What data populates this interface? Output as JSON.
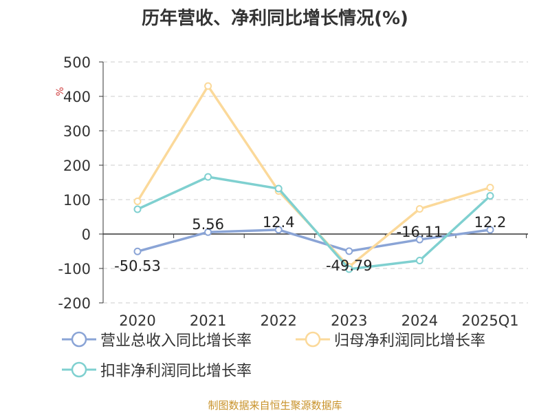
{
  "chart_data": {
    "type": "line",
    "title": "历年营收、净利同比增长情况(%)",
    "ylabel": "%",
    "categories": [
      "2020",
      "2021",
      "2022",
      "2023",
      "2024",
      "2025Q1"
    ],
    "ylim": [
      -200,
      500
    ],
    "yticks": [
      500,
      400,
      300,
      200,
      100,
      0,
      -100,
      -200
    ],
    "grid": true,
    "legend_position": "bottom",
    "series": [
      {
        "name": "营业总收入同比增长率",
        "color": "#8aa4d6",
        "values": [
          -50.53,
          5.56,
          12.4,
          -49.79,
          -16.11,
          12.2
        ],
        "show_labels": true
      },
      {
        "name": "归母净利润同比增长率",
        "color": "#fbd99a",
        "values": [
          95,
          430,
          125,
          -95,
          73,
          135
        ],
        "show_labels": false
      },
      {
        "name": "扣非净利润同比增长率",
        "color": "#7fd0d0",
        "values": [
          72,
          166,
          132,
          -102,
          -77,
          111
        ],
        "show_labels": false
      }
    ],
    "data_labels": [
      "-50.53",
      "5.56",
      "12.4",
      "-49.79",
      "-16.11",
      "12.2"
    ]
  },
  "source": "制图数据来自恒生聚源数据库"
}
